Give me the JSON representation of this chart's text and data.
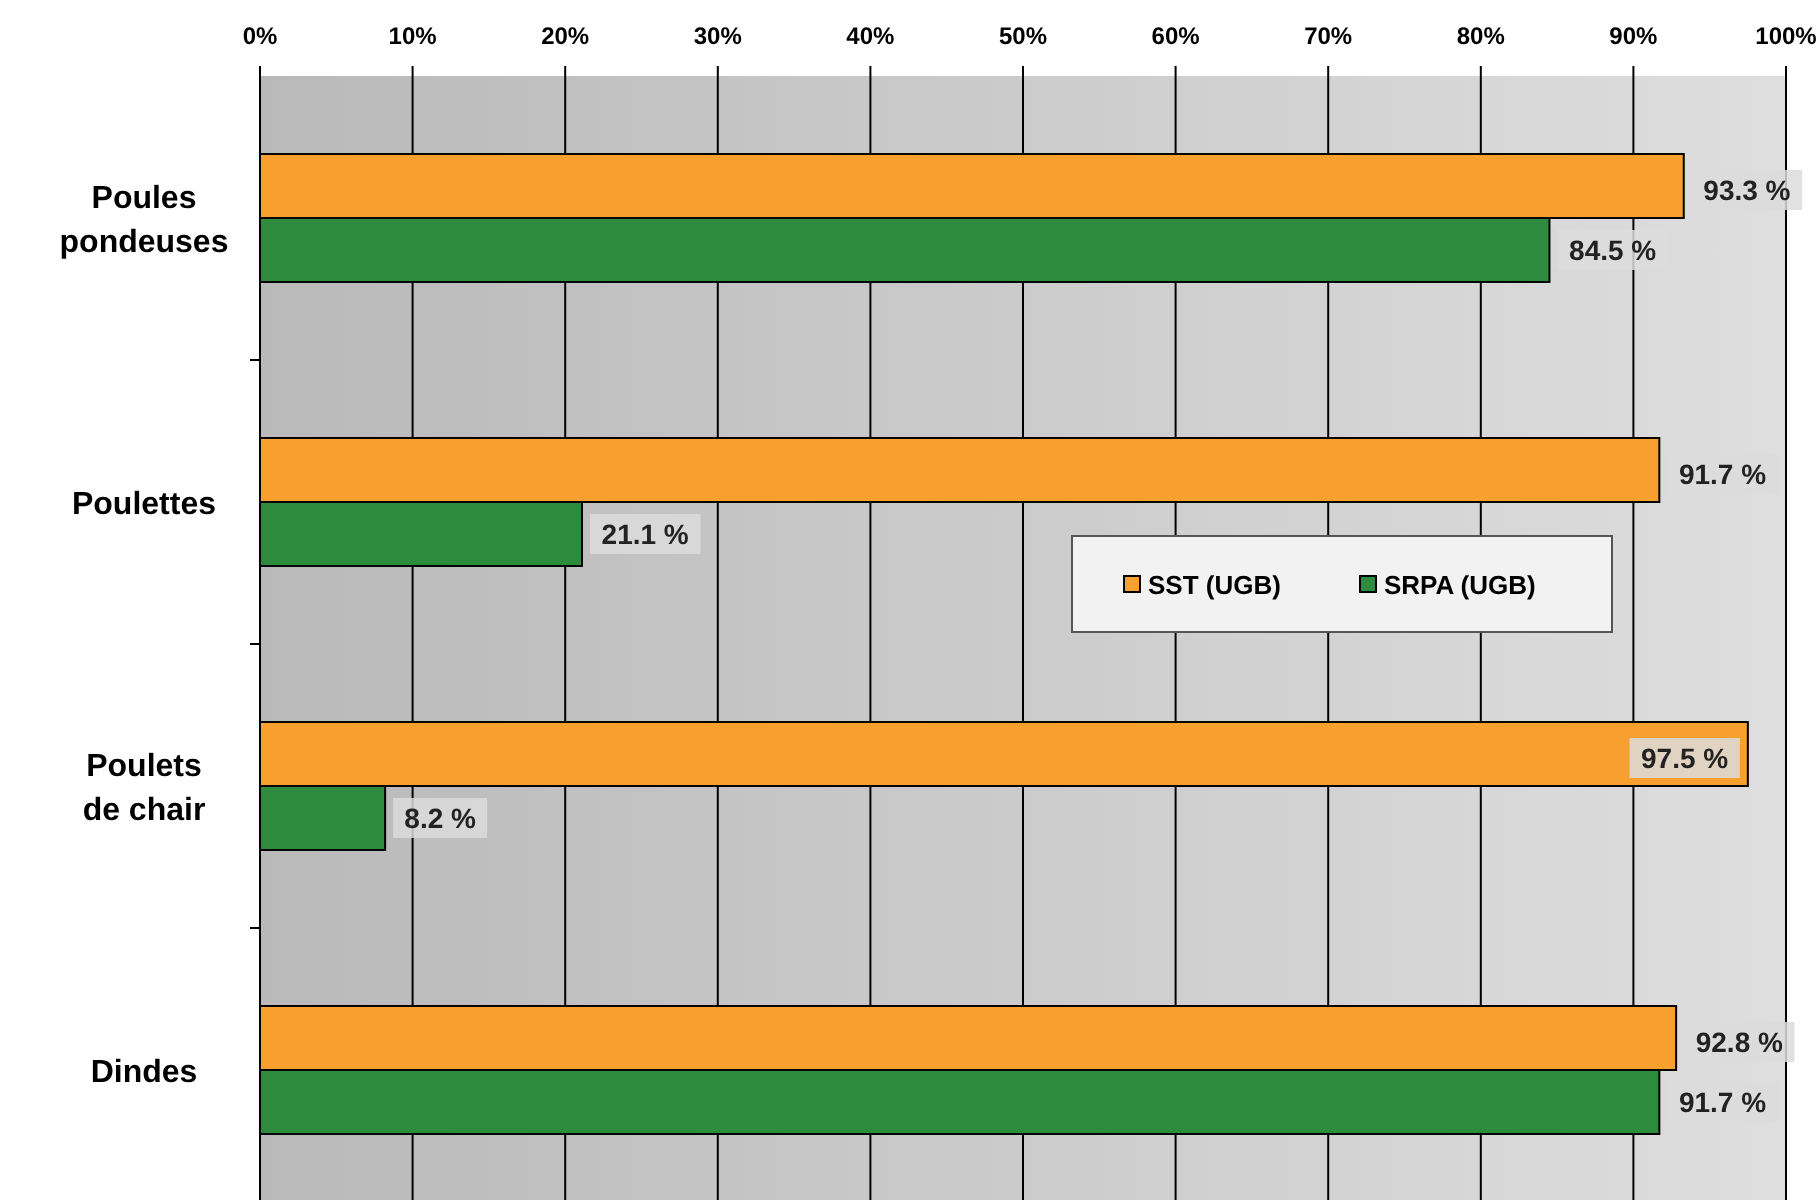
{
  "chart_data": {
    "type": "bar",
    "orientation": "horizontal",
    "categories": [
      "Poules pondeuses",
      "Poulettes",
      "Poulets de chair",
      "Dindes"
    ],
    "series": [
      {
        "name": "SST (UGB)",
        "color": "#f7a030",
        "values": [
          93.3,
          91.7,
          97.5,
          92.8
        ],
        "value_labels": [
          "93.3 %",
          "91.7 %",
          "97.5 %",
          "92.8 %"
        ]
      },
      {
        "name": "SRPA (UGB)",
        "color": "#2e8b3e",
        "values": [
          84.5,
          21.1,
          8.2,
          91.7
        ],
        "value_labels": [
          "84.5 %",
          "21.1 %",
          "8.2 %",
          "91.7 %"
        ]
      }
    ],
    "xlim": [
      0,
      100
    ],
    "xticks": [
      {
        "value": 0,
        "label": "0%"
      },
      {
        "value": 10,
        "label": "10%"
      },
      {
        "value": 20,
        "label": "20%"
      },
      {
        "value": 30,
        "label": "30%"
      },
      {
        "value": 40,
        "label": "40%"
      },
      {
        "value": 50,
        "label": "50%"
      },
      {
        "value": 60,
        "label": "60%"
      },
      {
        "value": 70,
        "label": "70%"
      },
      {
        "value": 80,
        "label": "80%"
      },
      {
        "value": 90,
        "label": "90%"
      },
      {
        "value": 100,
        "label": "100%"
      }
    ],
    "grid": "x",
    "legend": "right"
  }
}
